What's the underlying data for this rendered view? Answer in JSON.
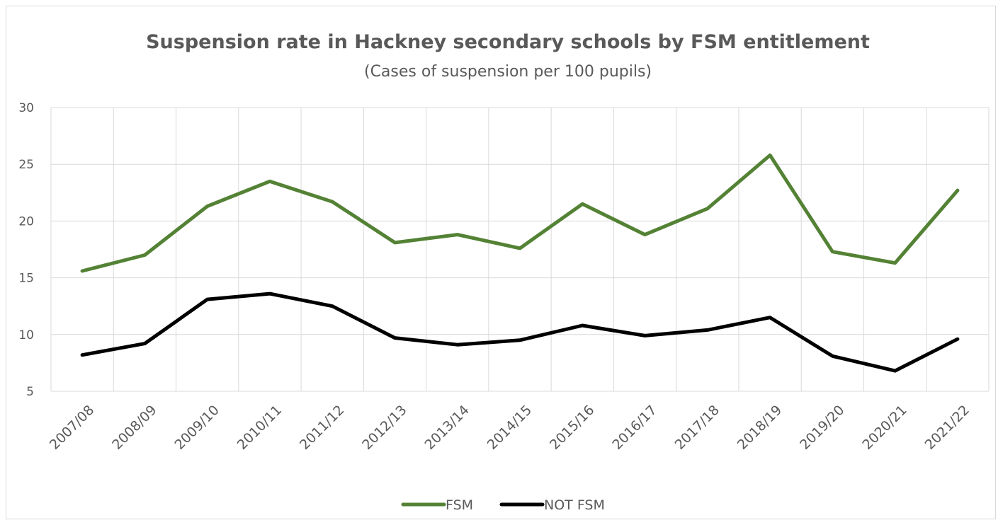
{
  "chart_data": {
    "type": "line",
    "title": "Suspension rate in Hackney secondary schools by FSM entitlement",
    "subtitle": "(Cases of suspension per 100 pupils)",
    "xlabel": "",
    "ylabel": "",
    "ylim": [
      5,
      30
    ],
    "yticks": [
      5,
      10,
      15,
      20,
      25,
      30
    ],
    "grid": true,
    "legend_position": "bottom",
    "categories": [
      "2007/08",
      "2008/09",
      "2009/10",
      "2010/11",
      "2011/12",
      "2012/13",
      "2013/14",
      "2014/15",
      "2015/16",
      "2016/17",
      "2017/18",
      "2018/19",
      "2019/20",
      "2020/21",
      "2021/22"
    ],
    "series": [
      {
        "name": "FSM",
        "color": "#548235",
        "values": [
          15.6,
          17.0,
          21.3,
          23.5,
          21.7,
          18.1,
          18.8,
          17.6,
          21.5,
          18.8,
          21.1,
          25.8,
          17.3,
          16.3,
          22.7
        ]
      },
      {
        "name": "NOT FSM",
        "color": "#000000",
        "values": [
          8.2,
          9.2,
          13.1,
          13.6,
          12.5,
          9.7,
          9.1,
          9.5,
          10.8,
          9.9,
          10.4,
          11.5,
          8.1,
          6.8,
          9.6
        ]
      }
    ]
  }
}
